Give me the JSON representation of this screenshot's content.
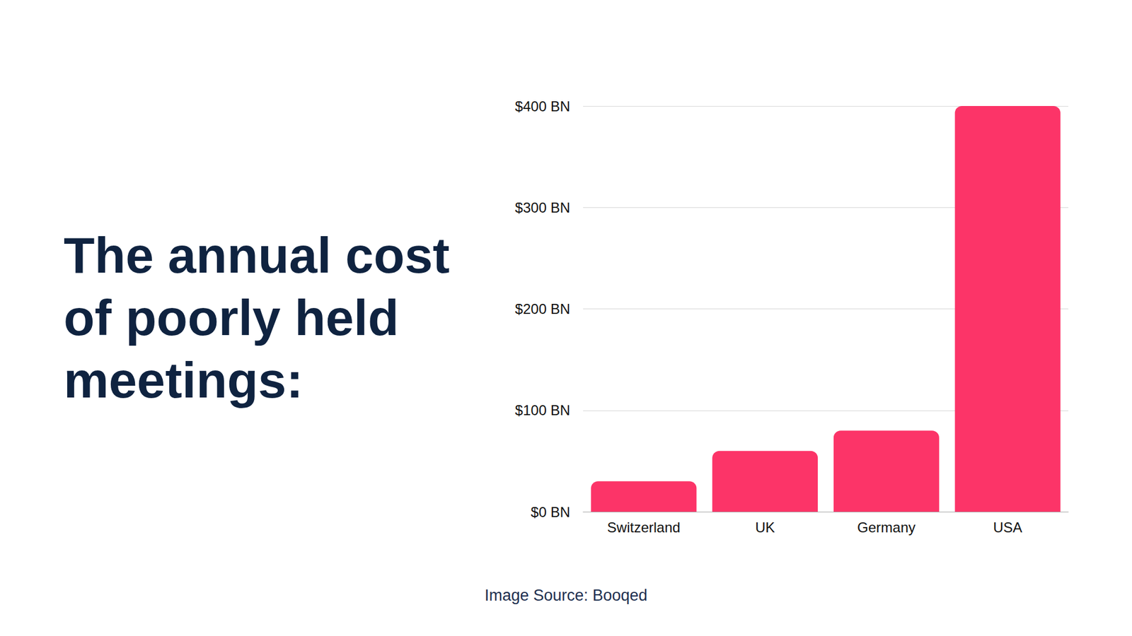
{
  "chart_data": {
    "type": "bar",
    "title": "The annual cost of poorly held meetings:",
    "annotations": [
      "Image Source: Booqed"
    ],
    "categories": [
      "Switzerland",
      "UK",
      "Germany",
      "USA"
    ],
    "values": [
      30,
      60,
      80,
      400
    ],
    "color": "#fc3468",
    "ylim": [
      0,
      400
    ],
    "yticks": [
      {
        "value": 0,
        "label": "$0 BN"
      },
      {
        "value": 100,
        "label": "$100 BN"
      },
      {
        "value": 200,
        "label": "$200 BN"
      },
      {
        "value": 300,
        "label": "$300 BN"
      },
      {
        "value": 400,
        "label": "$400 BN"
      }
    ],
    "grid": true
  }
}
